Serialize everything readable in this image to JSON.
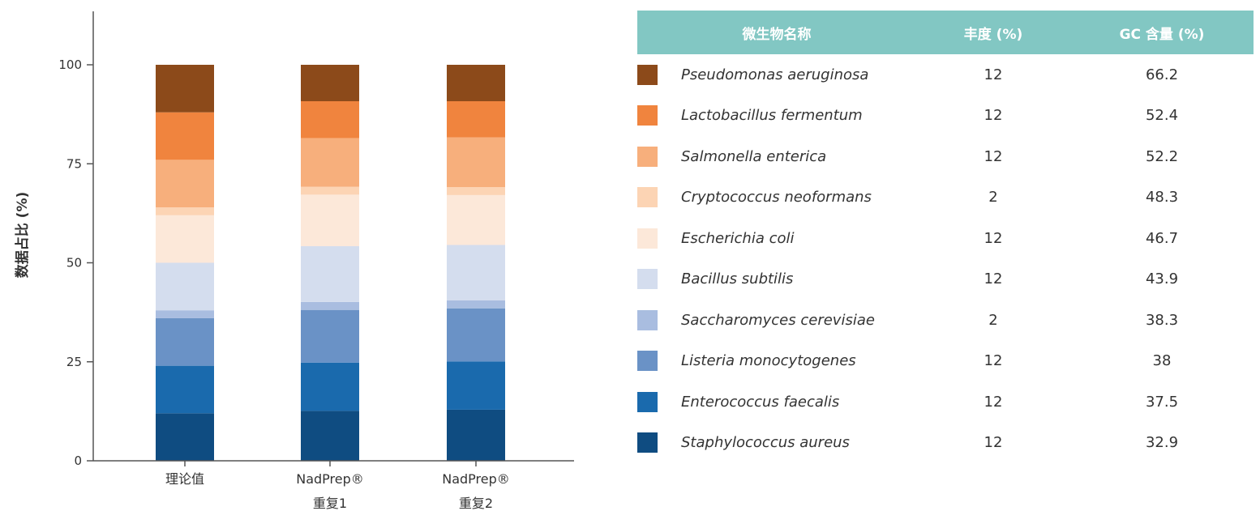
{
  "colors": {
    "axis": "#555555",
    "header_bg": "#82c7c3"
  },
  "chart_data": {
    "type": "bar",
    "stacked": true,
    "ylabel": "数据占比 (%)",
    "ylim": [
      0,
      100
    ],
    "yticks": [
      0,
      25,
      50,
      75,
      100
    ],
    "categories": [
      [
        "理论值"
      ],
      [
        "NadPrep®",
        "重复1"
      ],
      [
        "NadPrep®",
        "重复2"
      ]
    ],
    "series": [
      {
        "name": "Staphylococcus aureus",
        "color": "#0f4c81",
        "values": [
          12,
          12.6,
          12.9
        ]
      },
      {
        "name": "Enterococcus faecalis",
        "color": "#1a6aad",
        "values": [
          12,
          12.2,
          12.2
        ]
      },
      {
        "name": "Listeria monocytogenes",
        "color": "#6a92c6",
        "values": [
          12,
          13.3,
          13.4
        ]
      },
      {
        "name": "Saccharomyces cerevisiae",
        "color": "#a9bde0",
        "values": [
          2,
          2.0,
          2.0
        ]
      },
      {
        "name": "Bacillus subtilis",
        "color": "#d4ddee",
        "values": [
          12,
          14.1,
          14.0
        ]
      },
      {
        "name": "Escherichia coli",
        "color": "#fce8d9",
        "values": [
          12,
          13.0,
          12.6
        ]
      },
      {
        "name": "Cryptococcus neoformans",
        "color": "#fcd4b4",
        "values": [
          2,
          2.0,
          2.0
        ]
      },
      {
        "name": "Salmonella enterica",
        "color": "#f7af7c",
        "values": [
          12,
          12.3,
          12.6
        ]
      },
      {
        "name": "Lactobacillus fermentum",
        "color": "#f0843e",
        "values": [
          12,
          9.3,
          9.1
        ]
      },
      {
        "name": "Pseudomonas aeruginosa",
        "color": "#8c4a1a",
        "values": [
          12,
          9.2,
          9.2
        ]
      }
    ]
  },
  "table": {
    "headers": {
      "name": "微生物名称",
      "abundance": "丰度 (%)",
      "gc": "GC 含量 (%)"
    },
    "rows": [
      {
        "name": "Pseudomonas aeruginosa",
        "abundance": "12",
        "gc": "66.2",
        "color": "#8c4a1a"
      },
      {
        "name": "Lactobacillus fermentum",
        "abundance": "12",
        "gc": "52.4",
        "color": "#f0843e"
      },
      {
        "name": "Salmonella enterica",
        "abundance": "12",
        "gc": "52.2",
        "color": "#f7af7c"
      },
      {
        "name": "Cryptococcus neoformans",
        "abundance": "2",
        "gc": "48.3",
        "color": "#fcd4b4"
      },
      {
        "name": "Escherichia coli",
        "abundance": "12",
        "gc": "46.7",
        "color": "#fce8d9"
      },
      {
        "name": "Bacillus subtilis",
        "abundance": "12",
        "gc": "43.9",
        "color": "#d4ddee"
      },
      {
        "name": "Saccharomyces cerevisiae",
        "abundance": "2",
        "gc": "38.3",
        "color": "#a9bde0"
      },
      {
        "name": "Listeria monocytogenes",
        "abundance": "12",
        "gc": "38",
        "color": "#6a92c6"
      },
      {
        "name": "Enterococcus faecalis",
        "abundance": "12",
        "gc": "37.5",
        "color": "#1a6aad"
      },
      {
        "name": "Staphylococcus aureus",
        "abundance": "12",
        "gc": "32.9",
        "color": "#0f4c81"
      }
    ]
  }
}
